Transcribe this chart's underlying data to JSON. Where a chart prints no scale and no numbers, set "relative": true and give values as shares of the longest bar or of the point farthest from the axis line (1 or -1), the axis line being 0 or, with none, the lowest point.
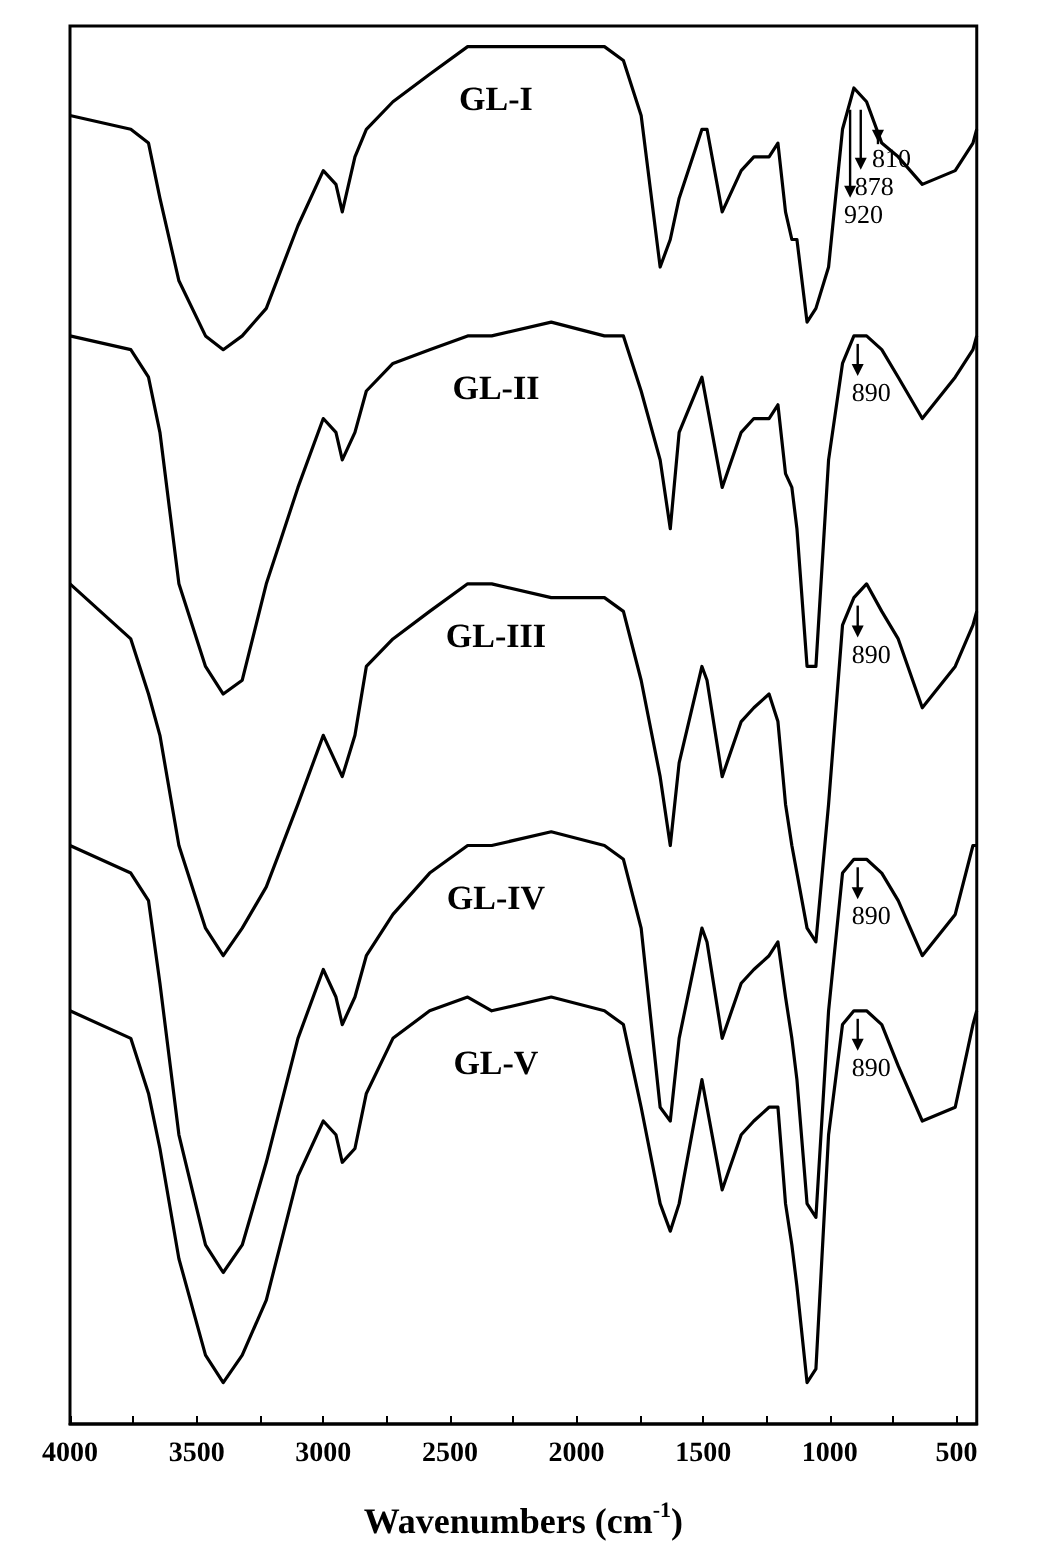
{
  "chart_data": {
    "type": "line",
    "relative": true,
    "xlabel": "Wavenumbers (cm$^{-1}$)",
    "xlim": [
      4000,
      420
    ],
    "xticks": [
      4000,
      {
        "value": 3750,
        "label": null
      },
      3500,
      {
        "value": 3250,
        "label": null
      },
      3000,
      {
        "value": 2750,
        "label": null
      },
      2500,
      {
        "value": 2250,
        "label": null
      },
      2000,
      {
        "value": 1750,
        "label": null
      },
      1500,
      {
        "value": 1250,
        "label": null
      },
      1000,
      {
        "value": 750,
        "label": null
      },
      500
    ],
    "tick_labels": "x",
    "x": [
      4000,
      3760,
      3690,
      3645,
      3570,
      3465,
      3395,
      3320,
      3225,
      3100,
      3000,
      2950,
      2925,
      2875,
      2830,
      2725,
      2580,
      2430,
      2335,
      2100,
      1890,
      1815,
      1745,
      1670,
      1630,
      1595,
      1505,
      1485,
      1425,
      1350,
      1300,
      1240,
      1205,
      1175,
      1150,
      1130,
      1090,
      1055,
      1005,
      950,
      905,
      855,
      795,
      730,
      635,
      505,
      435,
      420
    ],
    "series": [
      {
        "name": "GL-I",
        "color": "#000000",
        "values": [
          0.95,
          0.94,
          0.93,
          0.89,
          0.83,
          0.79,
          0.78,
          0.79,
          0.81,
          0.87,
          0.91,
          0.9,
          0.88,
          0.92,
          0.94,
          0.96,
          0.98,
          1.0,
          1.0,
          1.0,
          1.0,
          0.99,
          0.95,
          0.84,
          0.86,
          0.89,
          0.94,
          0.94,
          0.88,
          0.91,
          0.92,
          0.92,
          0.93,
          0.88,
          0.86,
          0.86,
          0.8,
          0.81,
          0.84,
          0.94,
          0.97,
          0.96,
          0.93,
          0.92,
          0.9,
          0.91,
          0.93,
          0.94
        ]
      },
      {
        "name": "GL-II",
        "color": "#000000",
        "values": [
          0.79,
          0.78,
          0.76,
          0.72,
          0.61,
          0.55,
          0.53,
          0.54,
          0.61,
          0.68,
          0.73,
          0.72,
          0.7,
          0.72,
          0.75,
          0.77,
          0.78,
          0.79,
          0.79,
          0.8,
          0.79,
          0.79,
          0.75,
          0.7,
          0.65,
          0.72,
          0.76,
          0.74,
          0.68,
          0.72,
          0.73,
          0.73,
          0.74,
          0.69,
          0.68,
          0.65,
          0.55,
          0.55,
          0.7,
          0.77,
          0.79,
          0.79,
          0.78,
          0.76,
          0.73,
          0.76,
          0.78,
          0.79
        ]
      },
      {
        "name": "GL-III",
        "color": "#000000",
        "values": [
          0.61,
          0.57,
          0.53,
          0.5,
          0.42,
          0.36,
          0.34,
          0.36,
          0.39,
          0.45,
          0.5,
          0.48,
          0.47,
          0.5,
          0.55,
          0.57,
          0.59,
          0.61,
          0.61,
          0.6,
          0.6,
          0.59,
          0.54,
          0.47,
          0.42,
          0.48,
          0.55,
          0.54,
          0.47,
          0.51,
          0.52,
          0.53,
          0.51,
          0.45,
          0.42,
          0.4,
          0.36,
          0.35,
          0.45,
          0.58,
          0.6,
          0.61,
          0.59,
          0.57,
          0.52,
          0.55,
          0.58,
          0.59
        ]
      },
      {
        "name": "GL-IV",
        "color": "#000000",
        "values": [
          0.42,
          0.4,
          0.38,
          0.32,
          0.21,
          0.13,
          0.11,
          0.13,
          0.19,
          0.28,
          0.33,
          0.31,
          0.29,
          0.31,
          0.34,
          0.37,
          0.4,
          0.42,
          0.42,
          0.43,
          0.42,
          0.41,
          0.36,
          0.23,
          0.22,
          0.28,
          0.36,
          0.35,
          0.28,
          0.32,
          0.33,
          0.34,
          0.35,
          0.31,
          0.28,
          0.25,
          0.16,
          0.15,
          0.3,
          0.4,
          0.41,
          0.41,
          0.4,
          0.38,
          0.34,
          0.37,
          0.42,
          0.42
        ]
      },
      {
        "name": "GL-V",
        "color": "#000000",
        "values": [
          0.3,
          0.28,
          0.24,
          0.2,
          0.12,
          0.05,
          0.03,
          0.05,
          0.09,
          0.18,
          0.22,
          0.21,
          0.19,
          0.2,
          0.24,
          0.28,
          0.3,
          0.31,
          0.3,
          0.31,
          0.3,
          0.29,
          0.23,
          0.16,
          0.14,
          0.16,
          0.25,
          0.23,
          0.17,
          0.21,
          0.22,
          0.23,
          0.23,
          0.16,
          0.13,
          0.1,
          0.03,
          0.04,
          0.21,
          0.29,
          0.3,
          0.3,
          0.29,
          0.26,
          0.22,
          0.23,
          0.29,
          0.3
        ]
      }
    ],
    "annotations": [
      {
        "text": "920",
        "x": 920,
        "y": 0.96
      },
      {
        "text": "878",
        "x": 878,
        "y": 0.96
      },
      {
        "text": "810",
        "x": 810,
        "y": 0.935
      },
      {
        "text": "890",
        "x": 890,
        "y": 0.79
      },
      {
        "text": "890",
        "x": 890,
        "y": 0.6
      },
      {
        "text": "890",
        "x": 890,
        "y": 0.41
      },
      {
        "text": "890",
        "x": 890,
        "y": 0.3
      }
    ]
  }
}
